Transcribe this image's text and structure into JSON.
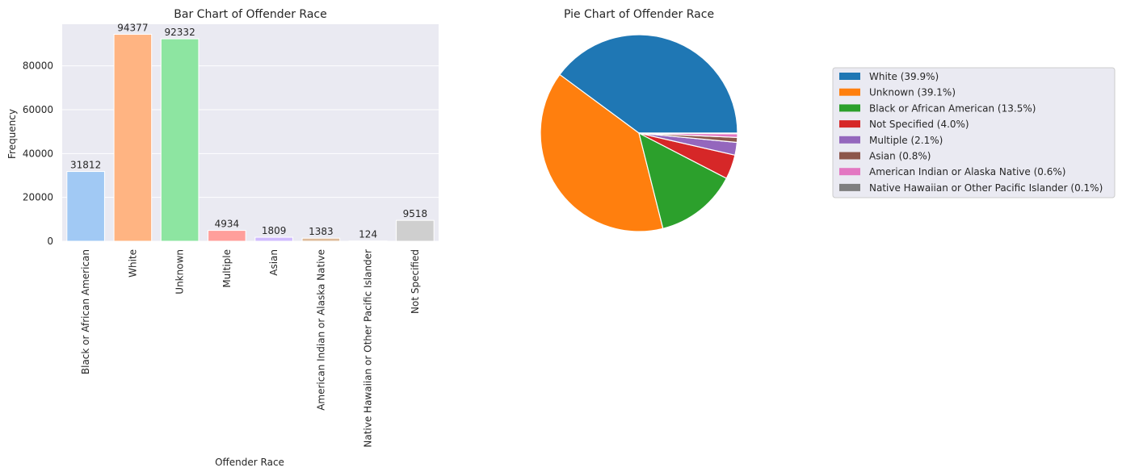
{
  "chart_data": [
    {
      "type": "bar",
      "title": "Bar Chart of Offender Race",
      "xlabel": "Offender Race",
      "ylabel": "Frequency",
      "ylim": [
        0,
        99000
      ],
      "yticks": [
        0,
        20000,
        40000,
        60000,
        80000
      ],
      "grid": true,
      "categories": [
        "Black or African American",
        "White",
        "Unknown",
        "Multiple",
        "Asian",
        "American Indian or Alaska Native",
        "Native Hawaiian or Other Pacific Islander",
        "Not Specified"
      ],
      "values": [
        31812,
        94377,
        92332,
        4934,
        1809,
        1383,
        124,
        9518
      ],
      "colors": [
        "#a1c9f4",
        "#ffb482",
        "#8de5a1",
        "#ff9f9b",
        "#d0bbff",
        "#debb9b",
        "#fab0e4",
        "#cfcfcf"
      ],
      "data_labels": [
        "31812",
        "94377",
        "92332",
        "4934",
        "1809",
        "1383",
        "124",
        "9518"
      ]
    },
    {
      "type": "pie",
      "title": "Pie Chart of Offender Race",
      "legend_position": "right",
      "slices": [
        {
          "label": "White (39.9%)",
          "value": 39.9,
          "color": "#1f77b4"
        },
        {
          "label": "Unknown (39.1%)",
          "value": 39.1,
          "color": "#ff7f0e"
        },
        {
          "label": "Black or African American (13.5%)",
          "value": 13.5,
          "color": "#2ca02c"
        },
        {
          "label": "Not Specified (4.0%)",
          "value": 4.0,
          "color": "#d62728"
        },
        {
          "label": "Multiple (2.1%)",
          "value": 2.1,
          "color": "#9467bd"
        },
        {
          "label": "Asian (0.8%)",
          "value": 0.8,
          "color": "#8c564b"
        },
        {
          "label": "American Indian or Alaska Native (0.6%)",
          "value": 0.6,
          "color": "#e377c2"
        },
        {
          "label": "Native Hawaiian or Other Pacific Islander (0.1%)",
          "value": 0.1,
          "color": "#7f7f7f"
        }
      ]
    }
  ]
}
